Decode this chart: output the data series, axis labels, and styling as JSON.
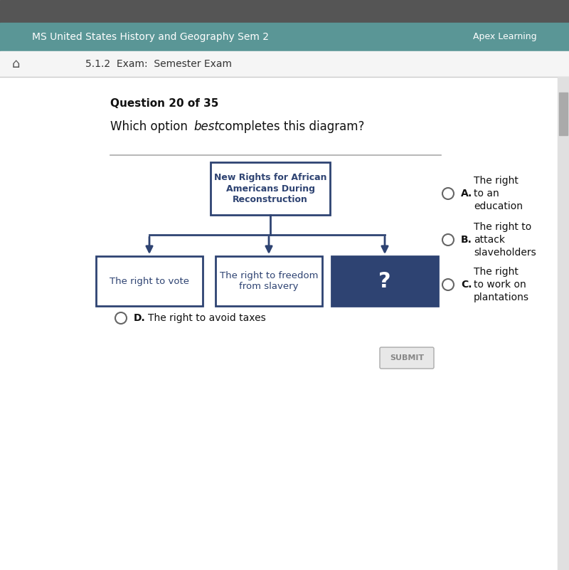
{
  "bg_main": "#ffffff",
  "navy_color": "#2e4372",
  "dark_blue_box": "#2e4372",
  "box_border": "#2e4372",
  "arrow_color": "#2e4372",
  "question_header": "Question 20 of 35",
  "top_box_text": "New Rights for African\nAmericans During\nReconstruction",
  "box1_text": "The right to vote",
  "box2_text": "The right to freedom\nfrom slavery",
  "box3_text": "?",
  "option_A_text": "The right\nto an\neducation",
  "option_B_text": "The right to\nattack\nslaveholders",
  "option_C_text": "The right\nto work on\nplantations",
  "option_D_text": "The right to avoid taxes",
  "submit_text": "SUBMIT",
  "nav_title": "MS United States History and Geography Sem 2",
  "nav_right": "Apex Learning",
  "breadcrumb": "5.1.2  Exam:  Semester Exam",
  "teal_bar_color": "#5a9696",
  "top_bar_color": "#555555",
  "nav_bar_color": "#f5f5f5"
}
